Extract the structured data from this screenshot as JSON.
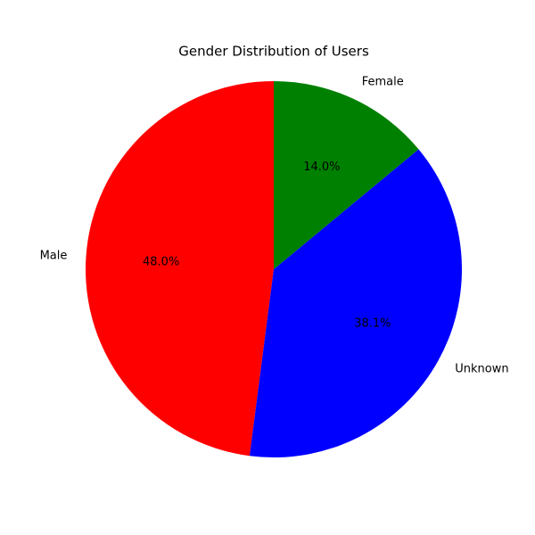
{
  "chart_data": {
    "type": "pie",
    "title": "Gender Distribution of Users",
    "categories": [
      "Male",
      "Unknown",
      "Female"
    ],
    "values": [
      48.0,
      38.1,
      14.0
    ],
    "value_labels": [
      "48.0%",
      "38.1%",
      "14.0%"
    ],
    "colors": [
      "red",
      "blue",
      "green"
    ]
  }
}
